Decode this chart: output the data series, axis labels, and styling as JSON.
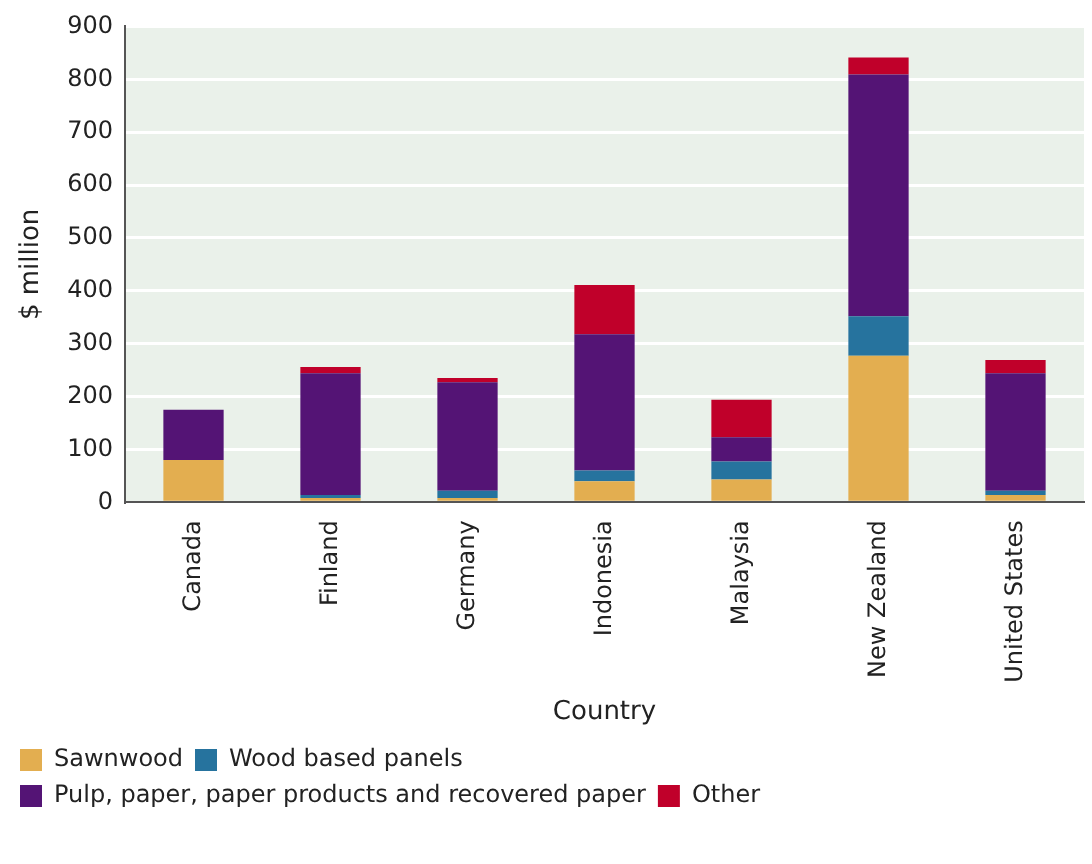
{
  "chart_data": {
    "type": "bar",
    "stacked": true,
    "xlabel": "Country",
    "ylabel": "$ million",
    "categories": [
      "Canada",
      "Finland",
      "Germany",
      "Indonesia",
      "Malaysia",
      "New Zealand",
      "United States"
    ],
    "series": [
      {
        "name": "Sawnwood",
        "color": "#e3ae50",
        "values": [
          80,
          8,
          8,
          40,
          43,
          277,
          14
        ]
      },
      {
        "name": "Wood based panels",
        "color": "#26739e",
        "values": [
          0,
          6,
          14,
          20,
          34,
          75,
          8
        ]
      },
      {
        "name": "Pulp, paper, paper products and recovered paper",
        "color": "#541475",
        "values": [
          95,
          230,
          205,
          258,
          46,
          457,
          222
        ]
      },
      {
        "name": "Other",
        "color": "#c0002a",
        "values": [
          0,
          12,
          8,
          93,
          71,
          32,
          25
        ]
      }
    ],
    "ylim": [
      0,
      900
    ],
    "yticks": [
      0,
      100,
      200,
      300,
      400,
      500,
      600,
      700,
      800,
      900
    ],
    "grid": "y",
    "legend": "bottom left"
  }
}
